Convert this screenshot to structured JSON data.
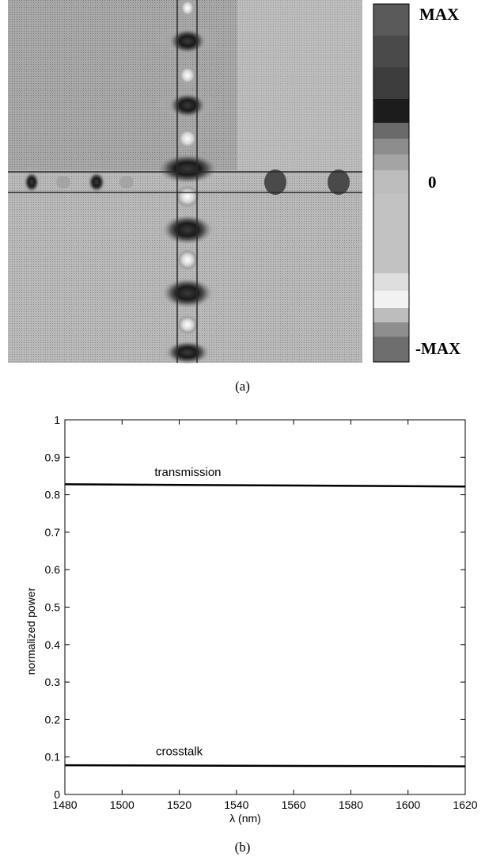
{
  "panels": {
    "a_label": "(a)",
    "b_label": "(b)"
  },
  "field_plot": {
    "colorbar_labels": {
      "max": "MAX",
      "zero": "0",
      "min": "-MAX"
    }
  },
  "chart_data": {
    "type": "line",
    "xlabel": "λ (nm)",
    "ylabel": "normalized power",
    "xlim": [
      1480,
      1620
    ],
    "ylim": [
      0,
      1
    ],
    "xticks": [
      1480,
      1500,
      1520,
      1540,
      1560,
      1580,
      1600,
      1620
    ],
    "yticks": [
      0,
      0.1,
      0.2,
      0.3,
      0.4,
      0.5,
      0.6,
      0.7,
      0.8,
      0.9,
      1
    ],
    "grid": false,
    "series": [
      {
        "name": "transmission",
        "x": [
          1480,
          1620
        ],
        "y": [
          0.828,
          0.822
        ]
      },
      {
        "name": "crosstalk",
        "x": [
          1480,
          1620
        ],
        "y": [
          0.078,
          0.075
        ]
      }
    ],
    "annotations": [
      {
        "text": "transmission",
        "x": 1523,
        "y": 0.85
      },
      {
        "text": "crosstalk",
        "x": 1520,
        "y": 0.105
      }
    ],
    "line_color": "#000000"
  }
}
